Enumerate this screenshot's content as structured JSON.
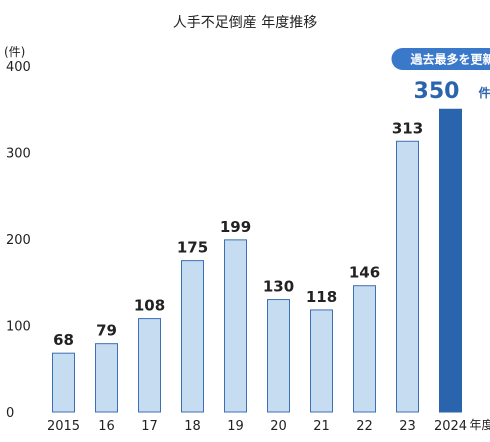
{
  "chart_data": {
    "type": "bar",
    "title": "人手不足倒産 年度推移",
    "ylabel": "(件)",
    "xlabel_suffix": "年度",
    "ylim": [
      0,
      400
    ],
    "yticks": [
      0,
      100,
      200,
      300,
      400
    ],
    "categories": [
      "2015",
      "16",
      "17",
      "18",
      "19",
      "20",
      "21",
      "22",
      "23",
      "2024"
    ],
    "values": [
      68,
      79,
      108,
      175,
      199,
      130,
      118,
      146,
      313,
      350
    ],
    "highlight": {
      "index": 9,
      "callout": "過去最多を更新",
      "value_text": "350",
      "unit": "件"
    },
    "colors": {
      "bar": "#c5dcf1",
      "bar_stroke": "#3d6fb5",
      "highlight_bar": "#2a64ad",
      "callout_bg": "#3a78c9"
    }
  }
}
